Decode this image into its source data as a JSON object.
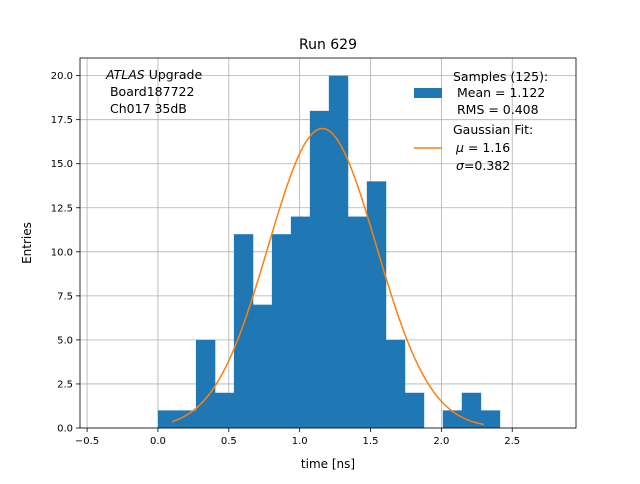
{
  "chart_data": {
    "type": "bar",
    "title": "Run 629",
    "xlabel": "time [ns]",
    "ylabel": "Entries",
    "xlim": [
      -0.55,
      2.95
    ],
    "ylim": [
      0,
      21
    ],
    "grid": true,
    "xticks": [
      -0.5,
      0.0,
      0.5,
      1.0,
      1.5,
      2.0,
      2.5
    ],
    "xtick_labels": [
      "−0.5",
      "0.0",
      "0.5",
      "1.0",
      "1.5",
      "2.0",
      "2.5"
    ],
    "yticks": [
      0,
      2.5,
      5,
      7.5,
      10,
      12.5,
      15,
      17.5,
      20
    ],
    "ytick_labels": [
      "0.0",
      "2.5",
      "5.0",
      "7.5",
      "10.0",
      "12.5",
      "15.0",
      "17.5",
      "20.0"
    ],
    "histogram": {
      "name": "Samples",
      "color": "#1f77b4",
      "bin_edges": [
        0.0,
        0.134,
        0.268,
        0.402,
        0.536,
        0.67,
        0.804,
        0.938,
        1.072,
        1.206,
        1.34,
        1.474,
        1.608,
        1.742,
        1.876,
        2.01,
        2.144,
        2.278,
        2.412
      ],
      "counts": [
        1,
        1,
        5,
        2,
        11,
        7,
        11,
        12,
        18,
        20,
        12,
        14,
        5,
        2,
        0,
        1,
        2,
        1
      ]
    },
    "gaussian_fit": {
      "name": "Gaussian Fit",
      "color": "#ff7f0e",
      "mu": 1.16,
      "sigma": 0.382,
      "amplitude": 17.0,
      "x_range": [
        0.1,
        2.3
      ]
    },
    "annotation": {
      "italic": "ATLAS",
      "line1_rest": " Upgrade",
      "line2": " Board187722",
      "line3": " Ch017 35dB"
    },
    "legend": {
      "placement": "top-right",
      "samples": [
        "Samples (125):",
        " Mean = 1.122",
        " RMS = 0.408"
      ],
      "fit_title": "Gaussian Fit:",
      "fit_mu_symbol": "μ",
      "fit_mu_rest": " = 1.16",
      "fit_sigma_symbol": "σ",
      "fit_sigma_rest": "=0.382"
    }
  }
}
